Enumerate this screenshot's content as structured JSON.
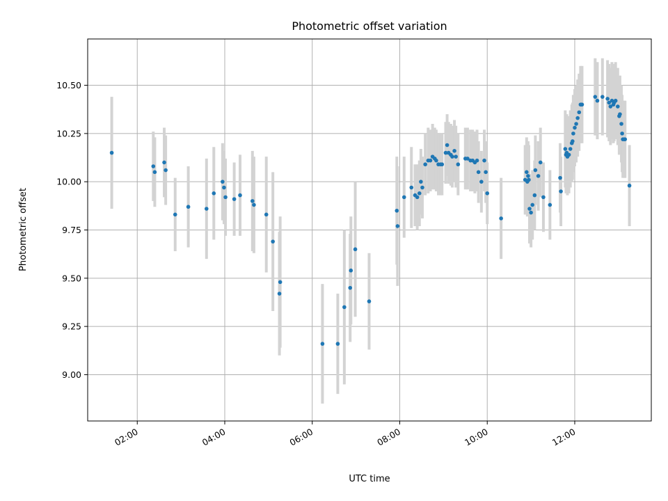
{
  "chart_data": {
    "type": "scatter",
    "title": "Photometric offset variation",
    "xlabel": "UTC time",
    "ylabel": "Photometric offset",
    "x_axis_kind": "time",
    "x_ticks": [
      "02:00",
      "04:00",
      "06:00",
      "08:00",
      "10:00",
      "12:00"
    ],
    "y_ticks": [
      "9.00",
      "9.25",
      "9.50",
      "9.75",
      "10.00",
      "10.25",
      "10.50"
    ],
    "xlim": [
      "00:52",
      "13:45"
    ],
    "ylim": [
      8.76,
      10.74
    ],
    "grid": true,
    "colors": {
      "point": "#1f77b4",
      "error_bar": "#d3d3d3",
      "grid": "#b0b0b0"
    },
    "series": [
      {
        "x": [
          "01:25",
          "02:22",
          "02:24",
          "02:37",
          "02:39",
          "02:52",
          "03:10",
          "03:35",
          "03:45",
          "03:57",
          "03:59",
          "04:01",
          "04:13",
          "04:21",
          "04:38",
          "04:40",
          "04:57",
          "05:06",
          "05:15",
          "05:16",
          "06:14",
          "06:35",
          "06:44",
          "06:52",
          "06:53",
          "06:59",
          "07:18",
          "07:56",
          "07:57",
          "08:06",
          "08:16",
          "08:21",
          "08:24",
          "08:27",
          "08:29",
          "08:31",
          "08:35",
          "08:39",
          "08:42",
          "08:45",
          "08:48",
          "08:50",
          "08:53",
          "08:56",
          "08:58",
          "09:03",
          "09:05",
          "09:07",
          "09:10",
          "09:12",
          "09:15",
          "09:17",
          "09:20",
          "09:30",
          "09:33",
          "09:37",
          "09:40",
          "09:43",
          "09:46",
          "09:48",
          "09:52",
          "09:56",
          "09:58",
          "10:00",
          "10:19",
          "10:52",
          "10:54",
          "10:55",
          "10:56",
          "10:57",
          "10:58",
          "11:00",
          "11:02",
          "11:05",
          "11:06",
          "11:10",
          "11:13",
          "11:17",
          "11:26",
          "11:40",
          "11:41",
          "11:47",
          "11:48",
          "11:49",
          "11:50",
          "11:52",
          "11:54",
          "11:56",
          "11:57",
          "11:58",
          "12:00",
          "12:02",
          "12:04",
          "12:06",
          "12:08",
          "12:09",
          "12:10",
          "12:28",
          "12:31",
          "12:38",
          "12:45",
          "12:47",
          "12:49",
          "12:51",
          "12:53",
          "12:54",
          "12:56",
          "12:59",
          "13:01",
          "13:02",
          "13:04",
          "13:05",
          "13:06",
          "13:08",
          "13:09",
          "13:15"
        ],
        "y": [
          10.15,
          10.08,
          10.05,
          10.1,
          10.06,
          9.83,
          9.87,
          9.86,
          9.94,
          10.0,
          9.97,
          9.92,
          9.91,
          9.93,
          9.9,
          9.88,
          9.83,
          9.69,
          9.42,
          9.48,
          9.16,
          9.16,
          9.35,
          9.45,
          9.54,
          9.65,
          9.38,
          9.85,
          9.77,
          9.92,
          9.97,
          9.93,
          9.92,
          9.94,
          10.0,
          9.97,
          10.09,
          10.11,
          10.11,
          10.13,
          10.12,
          10.11,
          10.09,
          10.09,
          10.09,
          10.15,
          10.19,
          10.15,
          10.14,
          10.13,
          10.16,
          10.13,
          10.09,
          10.12,
          10.12,
          10.11,
          10.11,
          10.1,
          10.11,
          10.05,
          10.0,
          10.11,
          10.05,
          9.94,
          9.81,
          10.01,
          10.05,
          10.0,
          10.03,
          10.01,
          9.86,
          9.84,
          9.88,
          9.93,
          10.06,
          10.03,
          10.1,
          9.92,
          9.88,
          10.02,
          9.95,
          10.17,
          10.14,
          10.15,
          10.13,
          10.14,
          10.17,
          10.2,
          10.21,
          10.25,
          10.28,
          10.3,
          10.33,
          10.36,
          10.4,
          10.4,
          10.4,
          10.44,
          10.42,
          10.44,
          10.43,
          10.41,
          10.39,
          10.42,
          10.4,
          10.41,
          10.42,
          10.39,
          10.34,
          10.35,
          10.3,
          10.25,
          10.22,
          10.22,
          10.22,
          9.98
        ],
        "yerr": [
          0.29,
          0.18,
          0.18,
          0.18,
          0.18,
          0.19,
          0.21,
          0.26,
          0.24,
          0.2,
          0.19,
          0.2,
          0.19,
          0.21,
          0.26,
          0.25,
          0.3,
          0.36,
          0.32,
          0.34,
          0.31,
          0.26,
          0.4,
          0.28,
          0.28,
          0.35,
          0.25,
          0.28,
          0.31,
          0.21,
          0.21,
          0.16,
          0.17,
          0.17,
          0.17,
          0.16,
          0.16,
          0.17,
          0.16,
          0.17,
          0.16,
          0.16,
          0.16,
          0.16,
          0.16,
          0.16,
          0.16,
          0.16,
          0.16,
          0.16,
          0.16,
          0.16,
          0.16,
          0.16,
          0.16,
          0.16,
          0.16,
          0.16,
          0.16,
          0.16,
          0.16,
          0.16,
          0.16,
          0.16,
          0.21,
          0.18,
          0.18,
          0.18,
          0.18,
          0.18,
          0.18,
          0.18,
          0.18,
          0.18,
          0.18,
          0.18,
          0.18,
          0.18,
          0.18,
          0.18,
          0.18,
          0.2,
          0.2,
          0.2,
          0.2,
          0.2,
          0.2,
          0.2,
          0.2,
          0.2,
          0.2,
          0.2,
          0.2,
          0.2,
          0.2,
          0.2,
          0.2,
          0.2,
          0.2,
          0.2,
          0.2,
          0.2,
          0.2,
          0.2,
          0.2,
          0.2,
          0.2,
          0.2,
          0.2,
          0.2,
          0.2,
          0.2,
          0.2,
          0.2,
          0.2,
          0.21
        ]
      }
    ]
  }
}
